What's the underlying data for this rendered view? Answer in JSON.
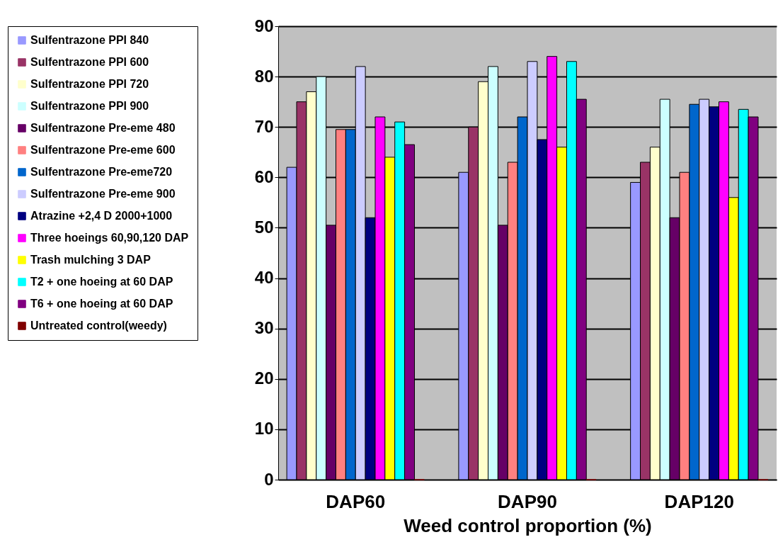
{
  "chart_data": {
    "type": "bar",
    "xlabel": "Weed control proportion (%)",
    "categories": [
      "DAP60",
      "DAP90",
      "DAP120"
    ],
    "ylim": [
      0,
      90
    ],
    "yticks": [
      0,
      10,
      20,
      30,
      40,
      50,
      60,
      70,
      80,
      90
    ],
    "grid": "y",
    "legend": "left",
    "series": [
      {
        "name": "Sulfentrazone PPI 840",
        "color": "#9999ff",
        "values": [
          62,
          61,
          59
        ]
      },
      {
        "name": "Sulfentrazone PPI 600",
        "color": "#993366",
        "values": [
          75,
          70,
          63
        ]
      },
      {
        "name": "Sulfentrazone PPI 720",
        "color": "#ffffcc",
        "values": [
          77,
          79,
          66
        ]
      },
      {
        "name": "Sulfentrazone PPI 900",
        "color": "#ccffff",
        "values": [
          80,
          82,
          75.5
        ]
      },
      {
        "name": "Sulfentrazone Pre-eme 480",
        "color": "#660066",
        "values": [
          50.5,
          50.5,
          52
        ]
      },
      {
        "name": "Sulfentrazone Pre-eme 600",
        "color": "#ff8080",
        "values": [
          69.5,
          63,
          61
        ]
      },
      {
        "name": "Sulfentrazone Pre-eme720",
        "color": "#0066cc",
        "values": [
          69.5,
          72,
          74.5
        ]
      },
      {
        "name": "Sulfentrazone  Pre-eme 900",
        "color": "#ccccff",
        "values": [
          82,
          83,
          75.5
        ]
      },
      {
        "name": "Atrazine +2,4 D 2000+1000",
        "color": "#000080",
        "values": [
          52,
          67.5,
          74
        ]
      },
      {
        "name": "Three hoeings 60,90,120 DAP",
        "color": "#ff00ff",
        "values": [
          72,
          84,
          75
        ]
      },
      {
        "name": "Trash mulching 3 DAP",
        "color": "#ffff00",
        "values": [
          64,
          66,
          56
        ]
      },
      {
        "name": "T2 + one hoeing at 60 DAP",
        "color": "#00ffff",
        "values": [
          71,
          83,
          73.5
        ]
      },
      {
        "name": "T6 + one hoeing at 60 DAP",
        "color": "#800080",
        "values": [
          66.5,
          75.5,
          72
        ]
      },
      {
        "name": "Untreated control(weedy)",
        "color": "#800000",
        "values": [
          0,
          0,
          0
        ]
      }
    ]
  }
}
